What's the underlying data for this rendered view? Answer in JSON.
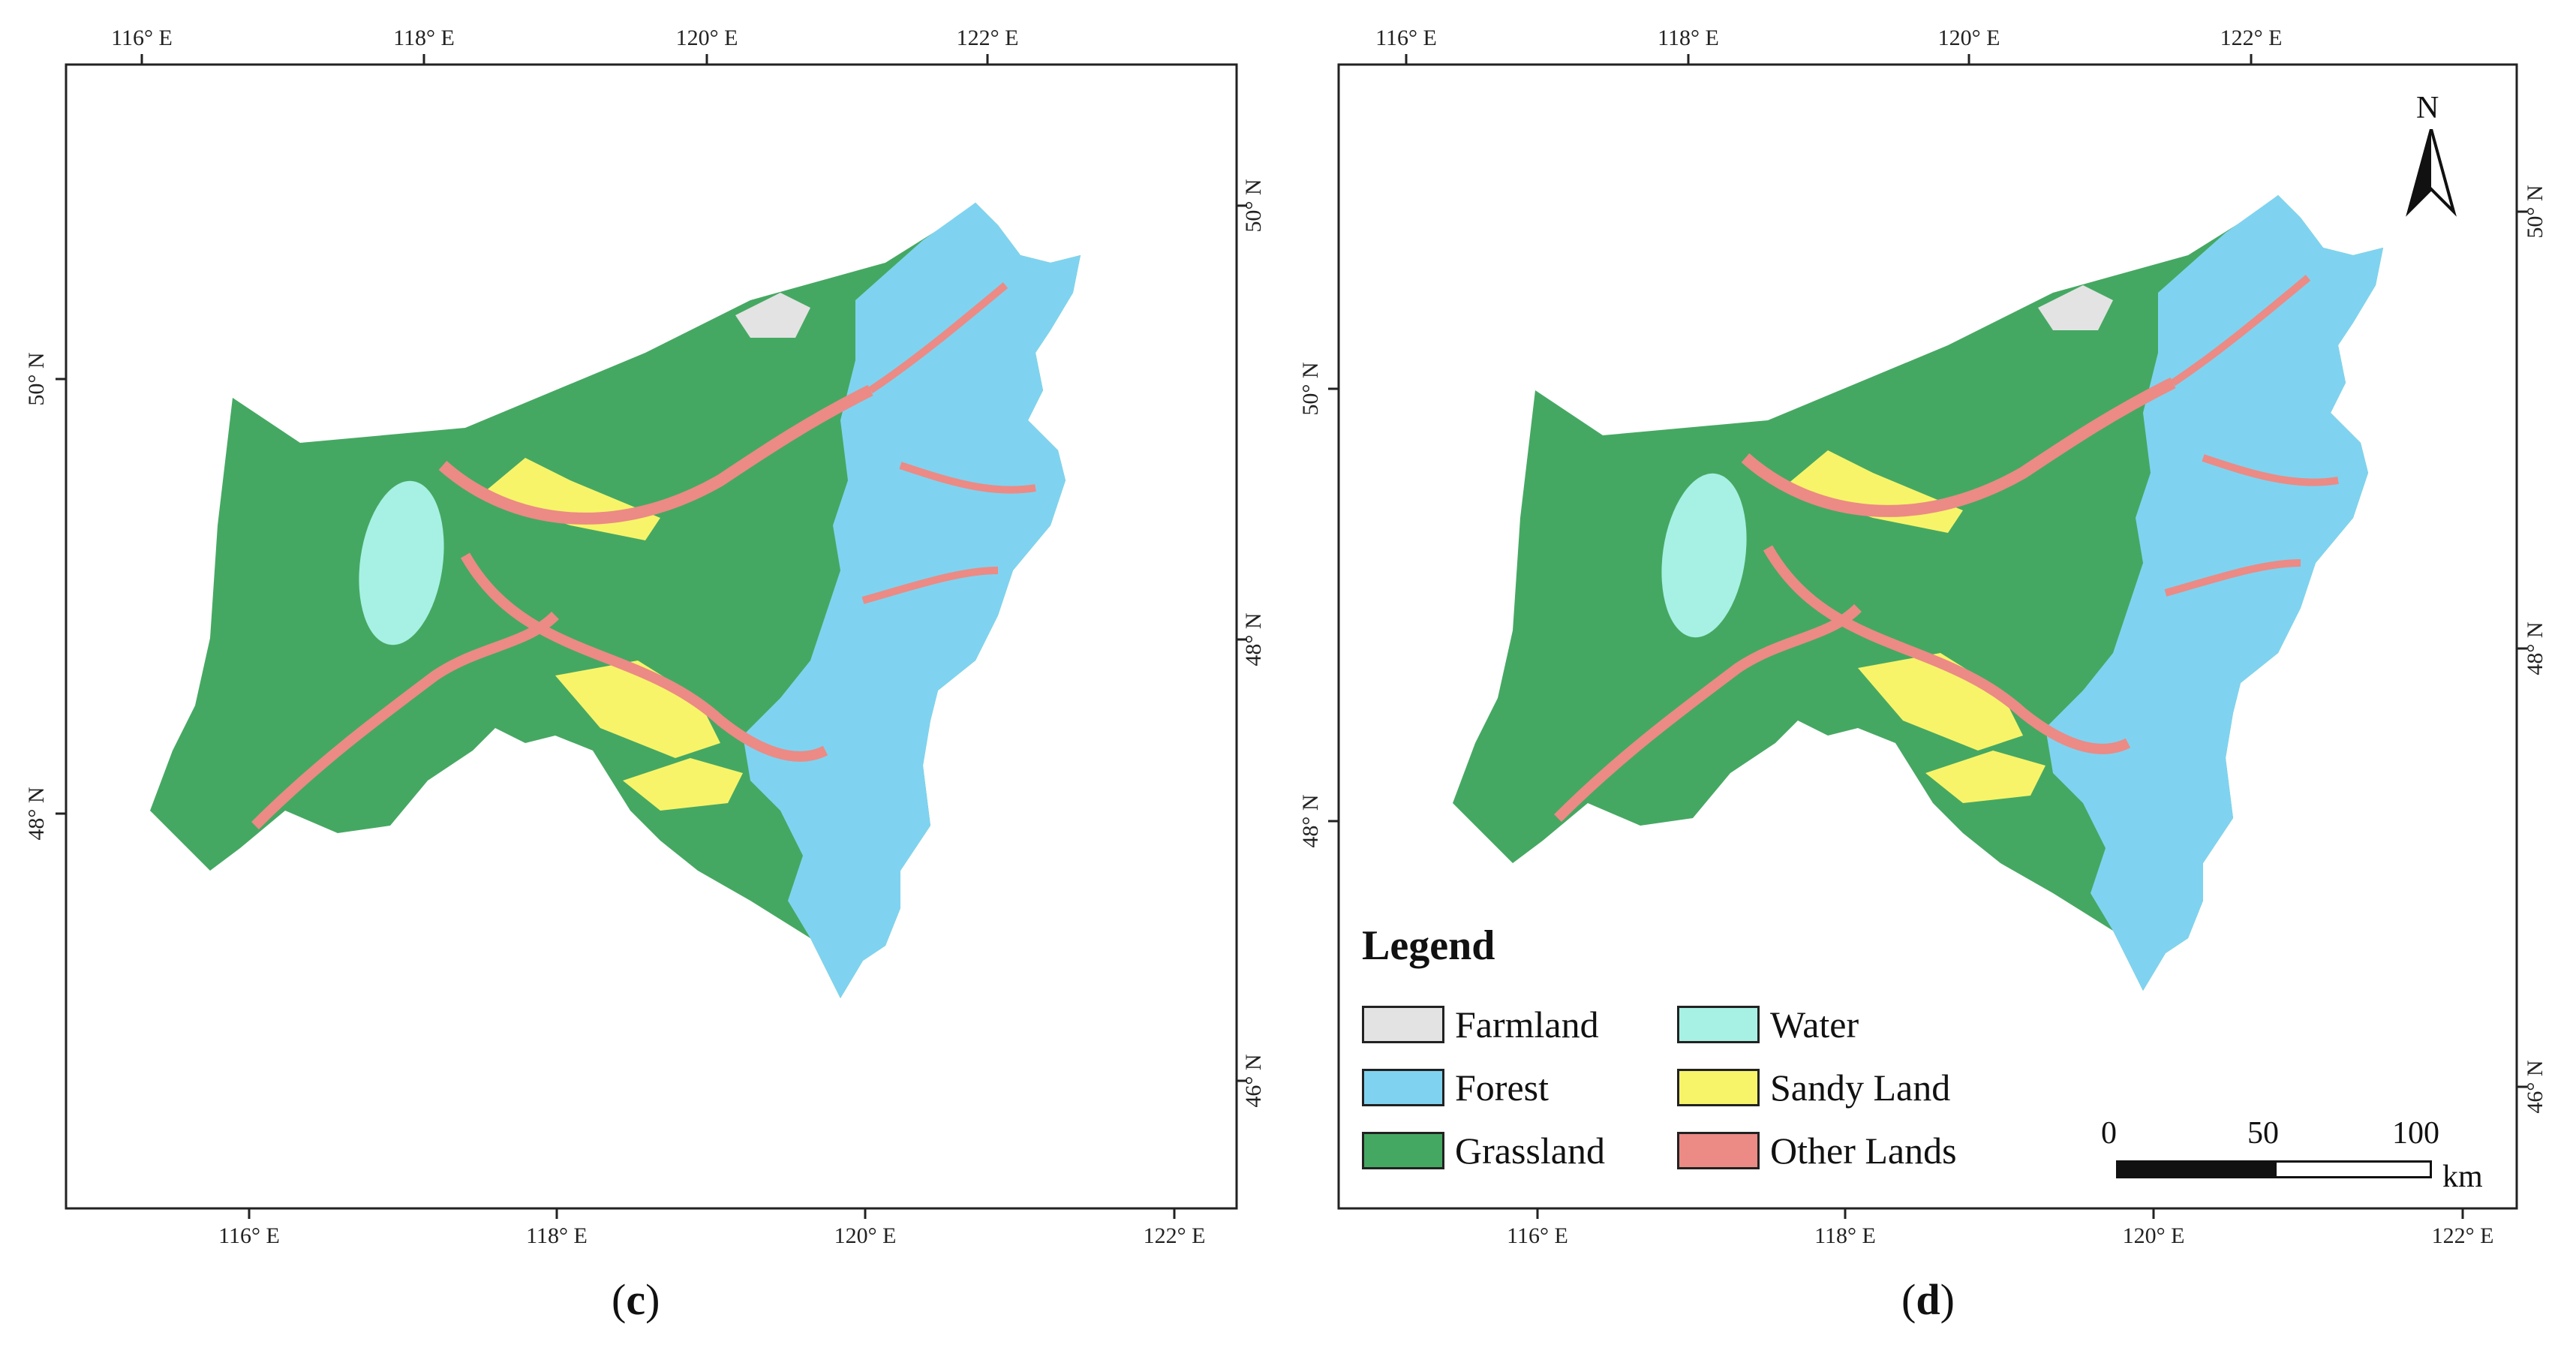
{
  "panels": [
    {
      "label": "c",
      "top_lon_ticks": [
        "116° E",
        "118° E",
        "120° E",
        "122° E"
      ],
      "bottom_lon_ticks": [
        "116° E",
        "118° E",
        "120° E",
        "122° E"
      ],
      "left_lat_ticks": [
        "50° N",
        "48° N"
      ],
      "right_lat_ticks": [
        "50° N",
        "48° N",
        "46° N"
      ]
    },
    {
      "label": "d",
      "top_lon_ticks": [
        "116° E",
        "118° E",
        "120° E",
        "122° E"
      ],
      "bottom_lon_ticks": [
        "116° E",
        "118° E",
        "120° E",
        "122° E"
      ],
      "left_lat_ticks": [
        "50° N",
        "48° N"
      ],
      "right_lat_ticks": [
        "50° N",
        "48° N",
        "46° N"
      ]
    }
  ],
  "legend": {
    "title": "Legend",
    "items": [
      {
        "label": "Farmland",
        "color": "#e3e3e3"
      },
      {
        "label": "Water",
        "color": "#a6f1e3"
      },
      {
        "label": "Forest",
        "color": "#7fd3f0"
      },
      {
        "label": "Sandy Land",
        "color": "#f7f46a"
      },
      {
        "label": "Grassland",
        "color": "#45a862"
      },
      {
        "label": "Other Lands",
        "color": "#ec8a85"
      }
    ]
  },
  "scale_bar": {
    "ticks": [
      "0",
      "50",
      "100"
    ],
    "unit": "km"
  },
  "north_arrow": {
    "letter": "N"
  }
}
